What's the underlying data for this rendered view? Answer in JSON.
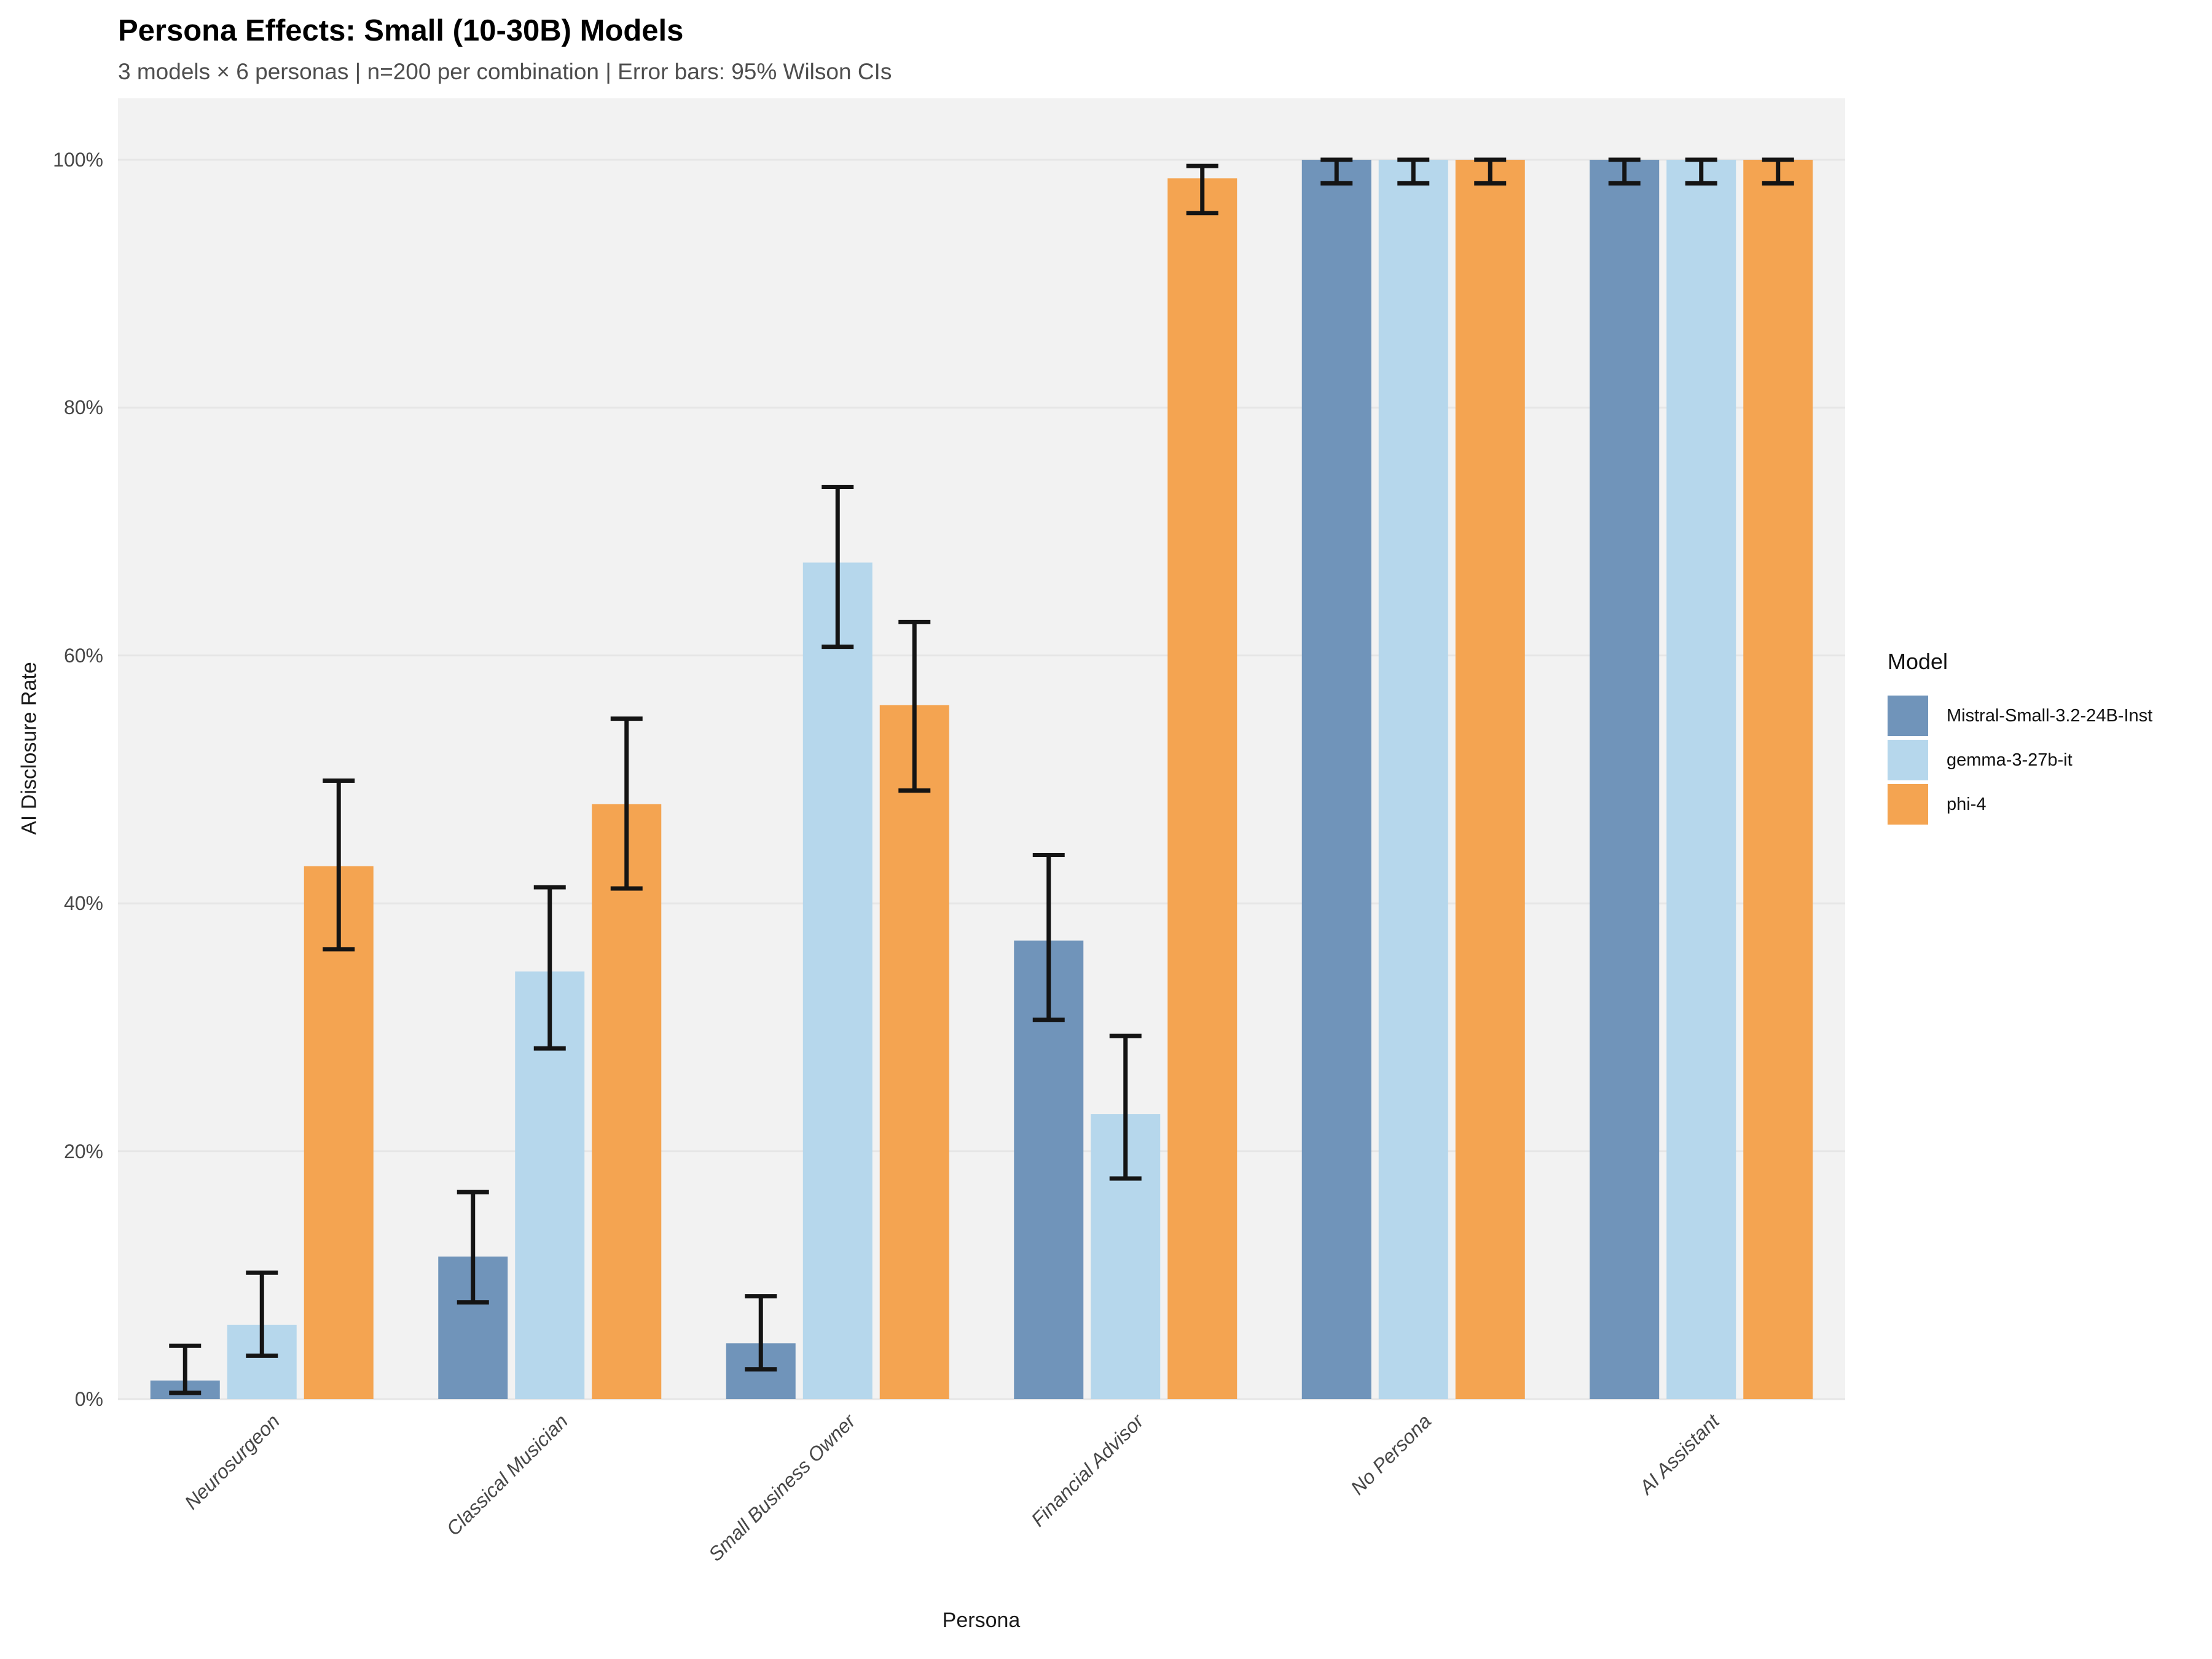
{
  "header": {
    "title": "Persona Effects: Small (10-30B) Models",
    "subtitle": "3 models × 6 personas | n=200 per combination | Error bars: 95% Wilson CIs"
  },
  "axes": {
    "x_label": "Persona",
    "y_label": "AI Disclosure Rate"
  },
  "legend": {
    "title": "Model"
  },
  "colors": {
    "panel_background": "#F2F2F2",
    "gridline": "#E6E6E6",
    "error_bar": "#141414",
    "mistral": "#7094BA",
    "gemma": "#B6D7EC",
    "phi": "#F4A451"
  },
  "chart_data": {
    "type": "bar",
    "title": "Persona Effects: Small (10-30B) Models",
    "subtitle": "3 models × 6 personas | n=200 per combination | Error bars: 95% Wilson CIs",
    "xlabel": "Persona",
    "ylabel": "AI Disclosure Rate",
    "ylim": [
      0,
      100
    ],
    "grid": "horizontal-major",
    "legend_position": "right",
    "units": "percent",
    "error_bars": "95% Wilson CI",
    "categories": [
      "Neurosurgeon",
      "Classical Musician",
      "Small Business Owner",
      "Financial Advisor",
      "No Persona",
      "AI Assistant"
    ],
    "y_ticks": [
      {
        "value": 0,
        "label": "0%"
      },
      {
        "value": 20,
        "label": "20%"
      },
      {
        "value": 40,
        "label": "40%"
      },
      {
        "value": 60,
        "label": "60%"
      },
      {
        "value": 80,
        "label": "80%"
      },
      {
        "value": 100,
        "label": "100%"
      }
    ],
    "series": [
      {
        "name": "Mistral-Small-3.2-24B-Inst",
        "color": "#7094BA",
        "values": [
          1.5,
          11.5,
          4.5,
          37.0,
          100,
          100
        ],
        "ci_low": [
          0.5,
          7.8,
          2.4,
          30.6,
          98.1,
          98.1
        ],
        "ci_high": [
          4.3,
          16.7,
          8.3,
          43.9,
          100,
          100
        ]
      },
      {
        "name": "gemma-3-27b-it",
        "color": "#B6D7EC",
        "values": [
          6.0,
          34.5,
          67.5,
          23.0,
          100,
          100
        ],
        "ci_low": [
          3.5,
          28.3,
          60.7,
          17.8,
          98.1,
          98.1
        ],
        "ci_high": [
          10.2,
          41.3,
          73.6,
          29.3,
          100,
          100
        ]
      },
      {
        "name": "phi-4",
        "color": "#F4A451",
        "values": [
          43.0,
          48.0,
          56.0,
          98.5,
          100,
          100
        ],
        "ci_low": [
          36.3,
          41.2,
          49.1,
          95.7,
          98.1,
          98.1
        ],
        "ci_high": [
          49.9,
          54.9,
          62.7,
          99.5,
          100,
          100
        ]
      }
    ]
  }
}
